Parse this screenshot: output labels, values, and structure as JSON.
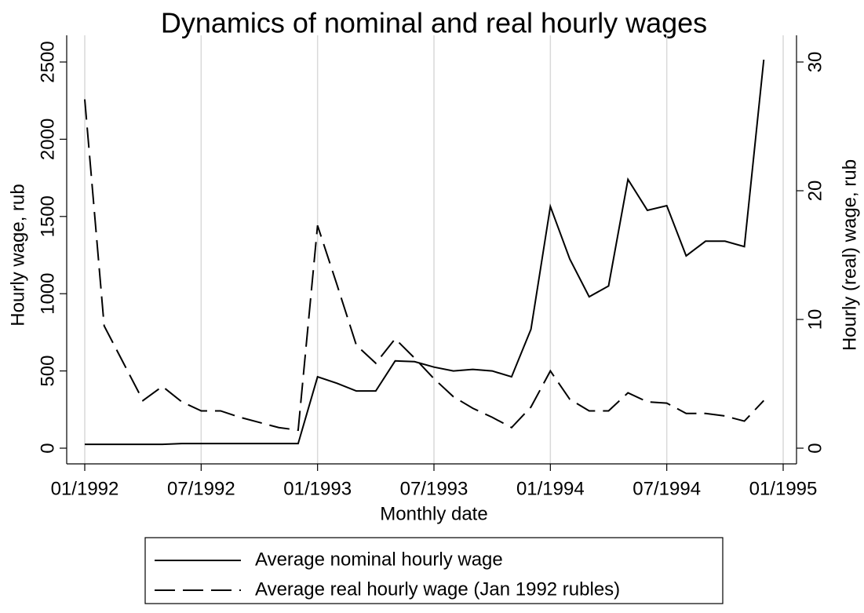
{
  "chart_data": {
    "type": "line",
    "title": "Dynamics of nominal and real hourly wages",
    "x_label": "Monthly date",
    "y_label": "Hourly wage, rub",
    "y2_label": "Hourly (real) wage, rub",
    "x": [
      "01/1992",
      "02/1992",
      "03/1992",
      "04/1992",
      "05/1992",
      "06/1992",
      "07/1992",
      "08/1992",
      "09/1992",
      "10/1992",
      "11/1992",
      "12/1992",
      "01/1993",
      "02/1993",
      "03/1993",
      "04/1993",
      "05/1993",
      "06/1993",
      "07/1993",
      "08/1993",
      "09/1993",
      "10/1993",
      "11/1993",
      "12/1993",
      "01/1994",
      "02/1994",
      "03/1994",
      "04/1994",
      "05/1994",
      "06/1994",
      "07/1994",
      "08/1994",
      "09/1994",
      "10/1994",
      "11/1994",
      "12/1994"
    ],
    "xlim": [
      "01/1992",
      "01/1995"
    ],
    "xticks": [
      "01/1992",
      "07/1992",
      "01/1993",
      "07/1993",
      "01/1994",
      "07/1994",
      "01/1995"
    ],
    "ylim": [
      0,
      2500
    ],
    "yticks": [
      0,
      500,
      1000,
      1500,
      2000,
      2500
    ],
    "y2lim": [
      0,
      30
    ],
    "y2ticks": [
      0,
      10,
      20,
      30
    ],
    "grid": true,
    "series": [
      {
        "name": "Average nominal hourly wage",
        "color": "#000000",
        "style": "solid",
        "values": [
          25,
          25,
          25,
          25,
          25,
          30,
          30,
          30,
          30,
          30,
          30,
          30,
          462,
          420,
          370,
          370,
          565,
          560,
          525,
          500,
          510,
          500,
          462,
          770,
          1565,
          1225,
          980,
          1050,
          1740,
          1540,
          1570,
          1245,
          1340,
          1340,
          1305,
          2515
        ]
      },
      {
        "name": "Average real hourly wage (Jan 1992 rubles)",
        "color": "#000000",
        "style": "dashed",
        "axis": "y2",
        "values": [
          27.1,
          9.5,
          6.6,
          3.7,
          4.8,
          3.6,
          2.9,
          2.9,
          2.4,
          2.0,
          1.6,
          1.4,
          17.3,
          12.7,
          8.0,
          6.6,
          8.5,
          7.0,
          5.4,
          4.0,
          3.1,
          2.4,
          1.6,
          3.2,
          6.0,
          3.8,
          2.9,
          2.9,
          4.3,
          3.6,
          3.5,
          2.7,
          2.7,
          2.5,
          2.1,
          3.7
        ]
      }
    ]
  }
}
